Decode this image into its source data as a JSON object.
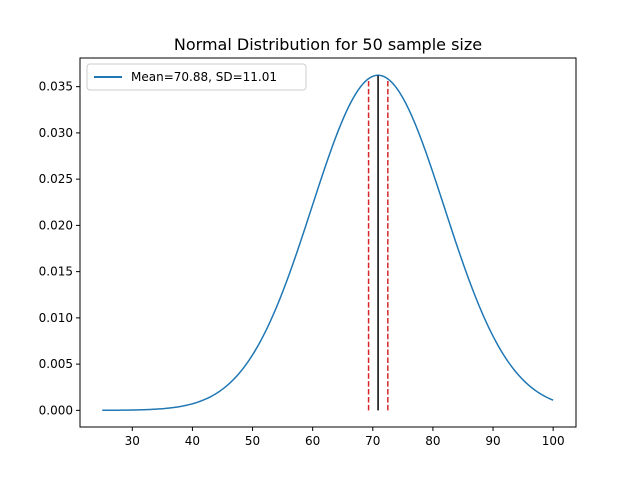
{
  "chart_data": {
    "type": "line",
    "title": "Normal Distribution for 50 sample size",
    "xlabel": "",
    "ylabel": "",
    "xlim": [
      21.3,
      103.8
    ],
    "ylim": [
      -0.0018,
      0.0381
    ],
    "grid": false,
    "legend_position": "top-left",
    "x_ticks": [
      30,
      40,
      50,
      60,
      70,
      80,
      90,
      100
    ],
    "y_ticks": [
      0.0,
      0.005,
      0.01,
      0.015,
      0.02,
      0.025,
      0.03,
      0.035
    ],
    "x_tick_labels": [
      "30",
      "40",
      "50",
      "60",
      "70",
      "80",
      "90",
      "100"
    ],
    "y_tick_labels": [
      "0.000",
      "0.005",
      "0.010",
      "0.015",
      "0.020",
      "0.025",
      "0.030",
      "0.035"
    ],
    "series": [
      {
        "name": "Mean=70.88, SD=11.01",
        "color": "#1f77b4",
        "distribution": "normal",
        "mean": 70.88,
        "sd": 11.01,
        "x_range": [
          25,
          100
        ]
      }
    ],
    "vertical_lines": [
      {
        "x": 70.88,
        "y_range": [
          0,
          0.0362
        ],
        "color": "#000000",
        "style": "solid"
      },
      {
        "x": 69.3,
        "y_range": [
          0,
          0.0358
        ],
        "color": "#d62728",
        "style": "dashed"
      },
      {
        "x": 72.5,
        "y_range": [
          0,
          0.0358
        ],
        "color": "#d62728",
        "style": "dashed"
      }
    ]
  }
}
